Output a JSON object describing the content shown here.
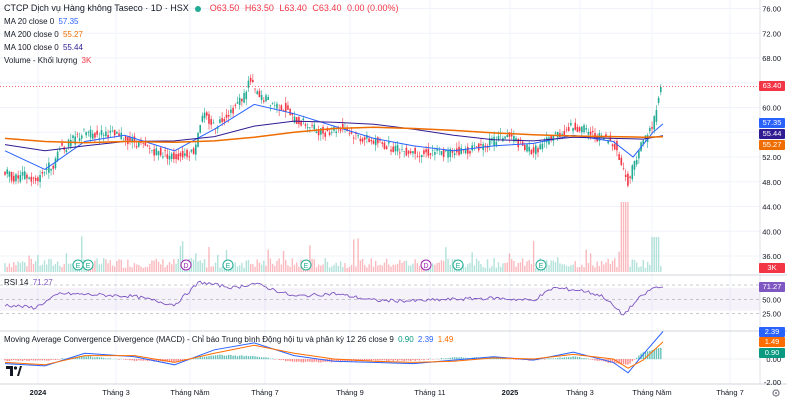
{
  "header": {
    "symbol": "CTCP Dịch vụ Hàng không Taseco · 1D · HSX",
    "ohlc": {
      "o": "O63.50",
      "h": "H63.50",
      "l": "L63.40",
      "c": "C63.40",
      "chg": "0.00 (0.00%)"
    }
  },
  "indicators": {
    "ma20": {
      "label": "MA 20 close 0",
      "value": "57.35",
      "color": "#2962ff"
    },
    "ma200": {
      "label": "MA 200 close 0",
      "value": "55.27",
      "color": "#ef6c00"
    },
    "ma100": {
      "label": "MA 100 close 0",
      "value": "55.44",
      "color": "#311b92"
    },
    "volume": {
      "label": "Volume - Khối lượng",
      "value": "3K",
      "color": "#f23645"
    },
    "rsi": {
      "label": "RSI 14",
      "value": "71.27",
      "color": "#7e57c2"
    },
    "macd": {
      "label": "Moving Average Convergence Divergence (MACD) - Chỉ báo Trung bình Động hội tụ và phân kỳ 12 26 close 9",
      "v1": "0.90",
      "v2": "2.39",
      "v3": "1.49"
    }
  },
  "price_axis": {
    "ticks": [
      "76.00",
      "72.00",
      "68.00",
      "64.00",
      "60.00",
      "56.00",
      "52.00",
      "48.00",
      "44.00",
      "40.00",
      "36.00"
    ],
    "tags": [
      {
        "text": "63.40",
        "bg": "#f23645"
      },
      {
        "text": "57.35",
        "bg": "#2962ff"
      },
      {
        "text": "55.44",
        "bg": "#311b92"
      },
      {
        "text": "55.27",
        "bg": "#ef6c00"
      },
      {
        "text": "3K",
        "bg": "#f23645"
      }
    ]
  },
  "rsi_axis": {
    "ticks": [
      "75.00",
      "50.00",
      "25.00"
    ],
    "tag": "71.27"
  },
  "macd_axis": {
    "ticks": [
      "2.00",
      "0.00",
      "-2.00"
    ],
    "tags": [
      "2.39",
      "1.49",
      "0.90"
    ]
  },
  "time_axis": [
    "2024",
    "Tháng 3",
    "Tháng Năm",
    "Tháng 7",
    "Tháng 9",
    "Tháng 11",
    "2025",
    "Tháng 3",
    "Tháng Năm",
    "Tháng 7"
  ],
  "events": [
    {
      "label": "E",
      "kind": "earnings"
    },
    {
      "label": "E",
      "kind": "earnings"
    },
    {
      "label": "D",
      "kind": "dividend"
    },
    {
      "label": "E",
      "kind": "earnings"
    },
    {
      "label": "E",
      "kind": "earnings"
    },
    {
      "label": "D",
      "kind": "dividend"
    },
    {
      "label": "E",
      "kind": "earnings"
    },
    {
      "label": "E",
      "kind": "earnings"
    }
  ],
  "colors": {
    "up": "#22ab94",
    "down": "#f23645",
    "grid": "#f0f3fa",
    "ma20": "#2962ff",
    "ma100": "#311b92",
    "ma200": "#ef6c00",
    "rsi": "#7e57c2",
    "macd": "#2962ff",
    "signal": "#ff6d00"
  },
  "chart_data": {
    "type": "candlestick",
    "title": "CTCP Dịch vụ Hàng không Taseco · 1D · HSX",
    "ylim": [
      35,
      77
    ],
    "close_path": [
      [
        0,
        49.5
      ],
      [
        10,
        48.5
      ],
      [
        20,
        49.0
      ],
      [
        30,
        48.0
      ],
      [
        40,
        50.0
      ],
      [
        50,
        51.0
      ],
      [
        55,
        54.0
      ],
      [
        60,
        53.5
      ],
      [
        70,
        55.0
      ],
      [
        80,
        56.0
      ],
      [
        90,
        55.5
      ],
      [
        100,
        56.0
      ],
      [
        110,
        55.5
      ],
      [
        120,
        55.0
      ],
      [
        130,
        54.5
      ],
      [
        140,
        53.5
      ],
      [
        150,
        53.0
      ],
      [
        160,
        52.5
      ],
      [
        170,
        52.0
      ],
      [
        180,
        52.5
      ],
      [
        190,
        53.0
      ],
      [
        195,
        57.5
      ],
      [
        200,
        58.5
      ],
      [
        210,
        57.0
      ],
      [
        220,
        58.5
      ],
      [
        230,
        60.0
      ],
      [
        240,
        62.0
      ],
      [
        245,
        64.5
      ],
      [
        250,
        63.0
      ],
      [
        255,
        61.5
      ],
      [
        260,
        61.5
      ],
      [
        270,
        60.5
      ],
      [
        280,
        60.0
      ],
      [
        290,
        58.0
      ],
      [
        300,
        57.5
      ],
      [
        310,
        56.5
      ],
      [
        320,
        56.0
      ],
      [
        330,
        56.5
      ],
      [
        340,
        57.0
      ],
      [
        345,
        56.0
      ],
      [
        350,
        55.5
      ],
      [
        360,
        55.0
      ],
      [
        370,
        54.5
      ],
      [
        380,
        54.0
      ],
      [
        390,
        53.5
      ],
      [
        400,
        53.0
      ],
      [
        410,
        53.0
      ],
      [
        420,
        52.5
      ],
      [
        430,
        53.0
      ],
      [
        440,
        52.5
      ],
      [
        450,
        53.0
      ],
      [
        460,
        53.0
      ],
      [
        470,
        53.5
      ],
      [
        480,
        54.0
      ],
      [
        490,
        54.5
      ],
      [
        500,
        55.5
      ],
      [
        510,
        55.0
      ],
      [
        520,
        53.5
      ],
      [
        530,
        53.0
      ],
      [
        540,
        54.0
      ],
      [
        550,
        55.5
      ],
      [
        560,
        56.0
      ],
      [
        570,
        57.0
      ],
      [
        580,
        56.5
      ],
      [
        590,
        55.5
      ],
      [
        600,
        55.0
      ],
      [
        610,
        54.5
      ],
      [
        620,
        50.0
      ],
      [
        625,
        48.0
      ],
      [
        630,
        50.5
      ],
      [
        635,
        53.0
      ],
      [
        640,
        54.5
      ],
      [
        645,
        56.0
      ],
      [
        650,
        57.0
      ],
      [
        655,
        62.0
      ],
      [
        660,
        63.4
      ]
    ],
    "ma20_path": [
      [
        0,
        53.0
      ],
      [
        40,
        50.0
      ],
      [
        80,
        54.5
      ],
      [
        120,
        55.5
      ],
      [
        170,
        53.0
      ],
      [
        210,
        56.5
      ],
      [
        250,
        60.5
      ],
      [
        290,
        59.0
      ],
      [
        330,
        57.0
      ],
      [
        370,
        55.0
      ],
      [
        410,
        53.8
      ],
      [
        450,
        53.0
      ],
      [
        490,
        53.8
      ],
      [
        530,
        54.2
      ],
      [
        570,
        55.5
      ],
      [
        610,
        54.5
      ],
      [
        630,
        52.0
      ],
      [
        650,
        56.0
      ],
      [
        660,
        57.35
      ]
    ],
    "ma100_path": [
      [
        0,
        54.0
      ],
      [
        40,
        53.0
      ],
      [
        80,
        53.8
      ],
      [
        120,
        54.5
      ],
      [
        170,
        54.6
      ],
      [
        210,
        55.3
      ],
      [
        250,
        57.0
      ],
      [
        290,
        57.8
      ],
      [
        330,
        57.6
      ],
      [
        370,
        57.3
      ],
      [
        410,
        56.5
      ],
      [
        450,
        55.5
      ],
      [
        490,
        54.8
      ],
      [
        530,
        54.6
      ],
      [
        570,
        55.2
      ],
      [
        610,
        55.0
      ],
      [
        640,
        54.9
      ],
      [
        660,
        55.44
      ]
    ],
    "ma200_path": [
      [
        0,
        55.0
      ],
      [
        40,
        54.5
      ],
      [
        80,
        54.3
      ],
      [
        120,
        54.5
      ],
      [
        170,
        54.4
      ],
      [
        210,
        54.6
      ],
      [
        250,
        55.2
      ],
      [
        290,
        56.0
      ],
      [
        330,
        56.6
      ],
      [
        370,
        56.8
      ],
      [
        410,
        56.6
      ],
      [
        450,
        56.3
      ],
      [
        490,
        55.9
      ],
      [
        530,
        55.6
      ],
      [
        570,
        55.4
      ],
      [
        610,
        55.3
      ],
      [
        640,
        55.2
      ],
      [
        660,
        55.27
      ]
    ],
    "rsi_path": [
      [
        0,
        40
      ],
      [
        30,
        35
      ],
      [
        55,
        60
      ],
      [
        90,
        58
      ],
      [
        130,
        55
      ],
      [
        170,
        40
      ],
      [
        195,
        80
      ],
      [
        230,
        70
      ],
      [
        250,
        78
      ],
      [
        290,
        55
      ],
      [
        330,
        60
      ],
      [
        370,
        48
      ],
      [
        410,
        47
      ],
      [
        450,
        50
      ],
      [
        490,
        52
      ],
      [
        530,
        48
      ],
      [
        550,
        70
      ],
      [
        580,
        65
      ],
      [
        600,
        55
      ],
      [
        620,
        22
      ],
      [
        635,
        50
      ],
      [
        650,
        70
      ],
      [
        660,
        71.27
      ]
    ],
    "macd_path": [
      [
        0,
        -0.4
      ],
      [
        40,
        -0.6
      ],
      [
        80,
        0.5
      ],
      [
        130,
        0.2
      ],
      [
        170,
        -0.5
      ],
      [
        210,
        0.8
      ],
      [
        250,
        1.4
      ],
      [
        290,
        0.3
      ],
      [
        330,
        -0.2
      ],
      [
        370,
        -0.3
      ],
      [
        410,
        -0.4
      ],
      [
        450,
        -0.1
      ],
      [
        490,
        0.2
      ],
      [
        530,
        -0.1
      ],
      [
        570,
        0.6
      ],
      [
        610,
        -0.3
      ],
      [
        625,
        -1.2
      ],
      [
        640,
        0.4
      ],
      [
        660,
        2.39
      ]
    ],
    "signal_path": [
      [
        0,
        -0.3
      ],
      [
        40,
        -0.5
      ],
      [
        80,
        0.3
      ],
      [
        130,
        0.3
      ],
      [
        170,
        -0.3
      ],
      [
        210,
        0.5
      ],
      [
        250,
        1.2
      ],
      [
        290,
        0.5
      ],
      [
        330,
        0.0
      ],
      [
        370,
        -0.2
      ],
      [
        410,
        -0.3
      ],
      [
        450,
        -0.2
      ],
      [
        490,
        0.1
      ],
      [
        530,
        0.0
      ],
      [
        570,
        0.4
      ],
      [
        610,
        0.0
      ],
      [
        625,
        -0.8
      ],
      [
        640,
        -0.1
      ],
      [
        660,
        1.49
      ]
    ],
    "rsi_ylim": [
      15,
      90
    ],
    "macd_ylim": [
      -2.5,
      3
    ]
  }
}
